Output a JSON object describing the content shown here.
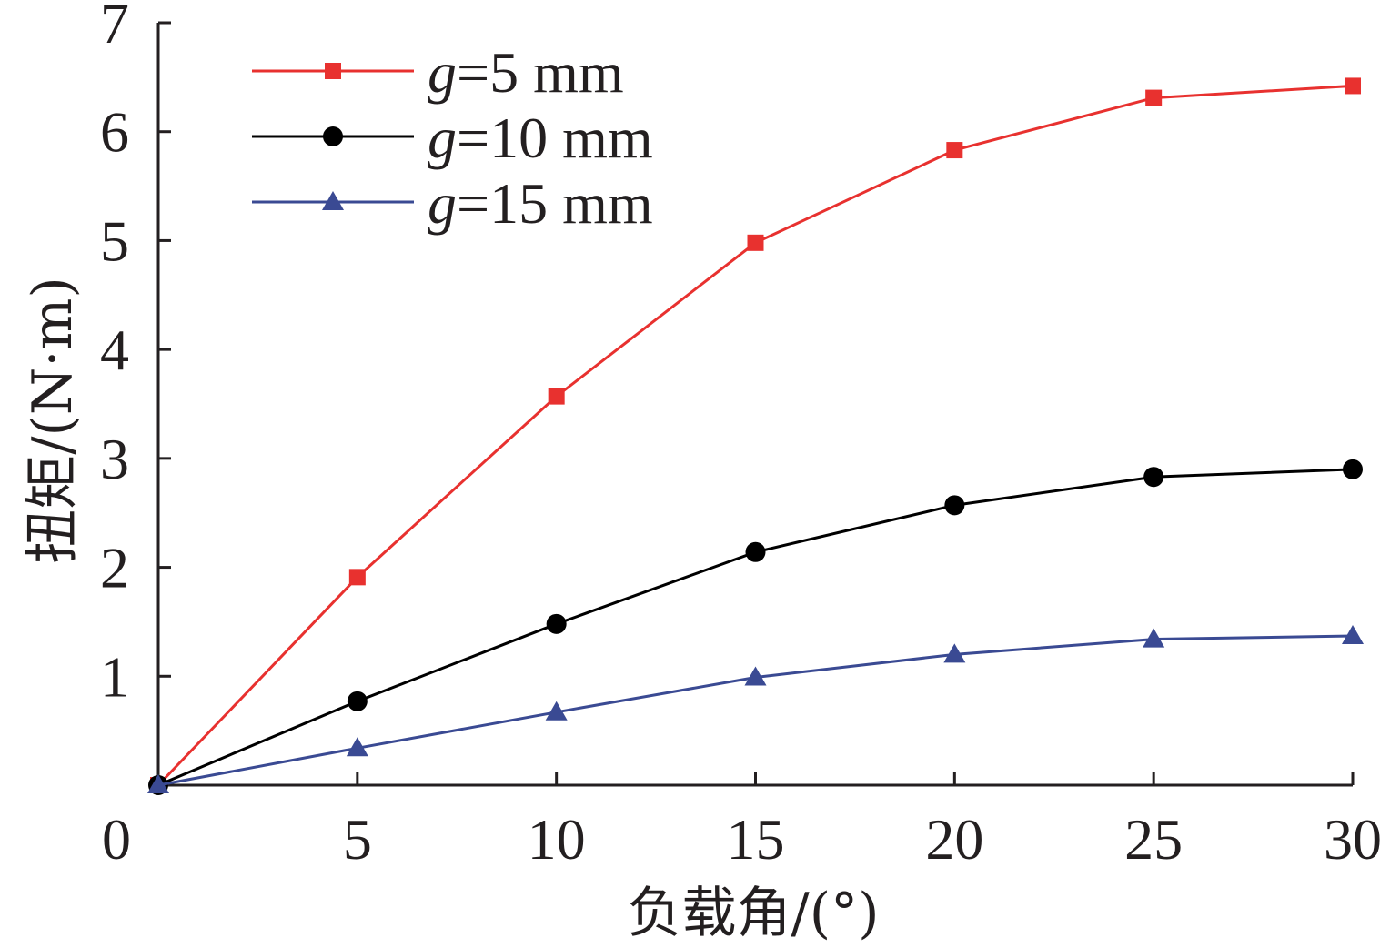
{
  "chart_data": {
    "type": "line",
    "xlabel": "负载角/(°)",
    "ylabel": "扭矩/(N·m)",
    "x": [
      0,
      5,
      10,
      15,
      20,
      25,
      30
    ],
    "xlim": [
      0,
      30
    ],
    "ylim": [
      0,
      7
    ],
    "x_tick_labels": [
      "0",
      "5",
      "10",
      "15",
      "20",
      "25",
      "30"
    ],
    "y_tick_labels": [
      "1",
      "2",
      "3",
      "4",
      "5",
      "6",
      "7"
    ],
    "grid": false,
    "legend_position": "top-left",
    "series": [
      {
        "name_prefix": "g",
        "name_suffix": "=5 mm",
        "color": "#e8312f",
        "marker": "square",
        "values": [
          0,
          1.91,
          3.57,
          4.98,
          5.83,
          6.31,
          6.42
        ]
      },
      {
        "name_prefix": "g",
        "name_suffix": "=10 mm",
        "color": "#000000",
        "marker": "circle",
        "values": [
          0,
          0.77,
          1.48,
          2.14,
          2.57,
          2.83,
          2.9
        ]
      },
      {
        "name_prefix": "g",
        "name_suffix": "=15 mm",
        "color": "#3a4a93",
        "marker": "triangle",
        "values": [
          0,
          0.34,
          0.67,
          0.99,
          1.2,
          1.34,
          1.37
        ]
      }
    ]
  }
}
